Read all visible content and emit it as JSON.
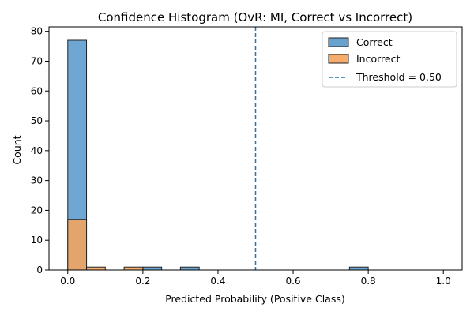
{
  "chart_data": {
    "type": "bar",
    "title": "Confidence Histogram (OvR: MI, Correct vs Incorrect)",
    "xlabel": "Predicted Probability (Positive Class)",
    "ylabel": "Count",
    "xlim": [
      -0.05,
      1.05
    ],
    "ylim": [
      0,
      81.5
    ],
    "xticks": [
      "0.0",
      "0.2",
      "0.4",
      "0.6",
      "0.8",
      "1.0"
    ],
    "yticks": [
      "0",
      "10",
      "20",
      "30",
      "40",
      "50",
      "60",
      "70",
      "80"
    ],
    "bin_width": 0.05,
    "grid": false,
    "legend_position": "top-right",
    "series": [
      {
        "name": "Correct",
        "color": "#5b9bcc",
        "bins": [
          {
            "x0": 0.0,
            "x1": 0.05,
            "count": 77
          },
          {
            "x0": 0.2,
            "x1": 0.25,
            "count": 1
          },
          {
            "x0": 0.3,
            "x1": 0.35,
            "count": 1
          },
          {
            "x0": 0.75,
            "x1": 0.8,
            "count": 1
          }
        ]
      },
      {
        "name": "Incorrect",
        "color": "#f5a55e",
        "bins": [
          {
            "x0": 0.0,
            "x1": 0.05,
            "count": 17
          },
          {
            "x0": 0.05,
            "x1": 0.1,
            "count": 1
          },
          {
            "x0": 0.15,
            "x1": 0.2,
            "count": 1
          }
        ]
      }
    ],
    "threshold": {
      "label": "Threshold = 0.50",
      "value": 0.5,
      "color": "#1f77b4"
    }
  }
}
